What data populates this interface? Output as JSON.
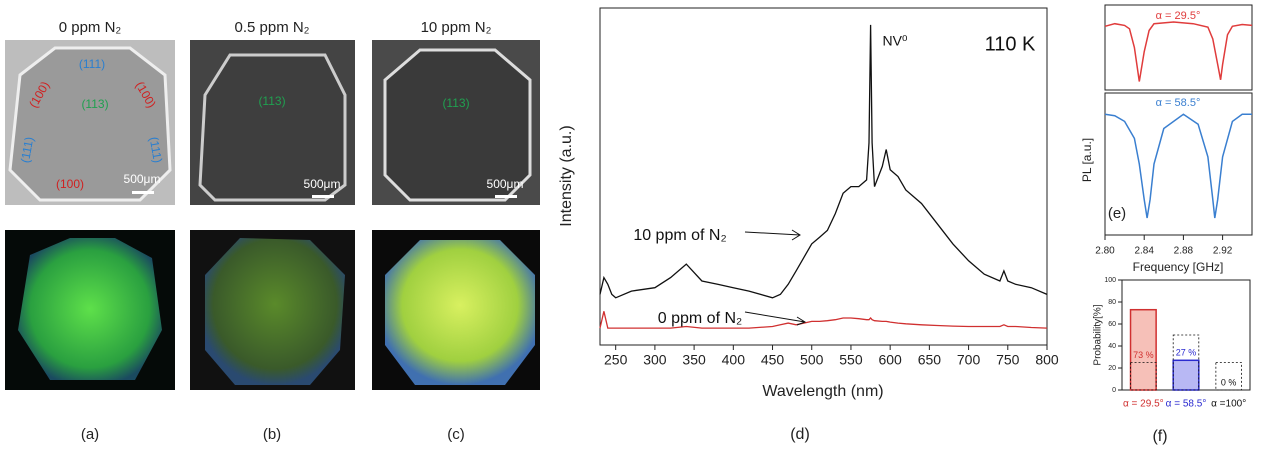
{
  "photos": [
    {
      "title": "0 ppm N₂",
      "label": "(a)",
      "facets": [
        "(111)",
        "(100)",
        "(100)",
        "(113)",
        "(111)",
        "(111)",
        "(100)"
      ],
      "scale": "500μm"
    },
    {
      "title": "0.5 ppm N₂",
      "label": "(b)",
      "facets": [
        "(113)"
      ],
      "scale": "500μm"
    },
    {
      "title": "10 ppm N₂",
      "label": "(c)",
      "facets": [
        "(113)"
      ],
      "scale": "500μm"
    }
  ],
  "chart_data": [
    {
      "type": "line",
      "panel": "(d)",
      "xlabel": "Wavelength (nm)",
      "ylabel": "Intensity (a.u.)",
      "annotations": [
        "110 K",
        "NV⁰"
      ],
      "xlim": [
        230,
        800
      ],
      "ylim": [
        0,
        1
      ],
      "xticks": [
        250,
        300,
        350,
        400,
        450,
        500,
        550,
        600,
        650,
        700,
        750,
        800
      ],
      "x": [
        230,
        235,
        240,
        245,
        250,
        270,
        300,
        320,
        340,
        360,
        380,
        400,
        420,
        450,
        460,
        470,
        480,
        490,
        500,
        510,
        520,
        530,
        540,
        550,
        560,
        570,
        573,
        575,
        577,
        580,
        590,
        595,
        600,
        610,
        620,
        640,
        660,
        680,
        700,
        720,
        740,
        745,
        750,
        760,
        780,
        800
      ],
      "series": [
        {
          "name": "10 ppm of N₂",
          "color": "#111111",
          "values": [
            0.15,
            0.2,
            0.18,
            0.15,
            0.14,
            0.16,
            0.17,
            0.2,
            0.24,
            0.19,
            0.18,
            0.17,
            0.16,
            0.14,
            0.15,
            0.18,
            0.22,
            0.26,
            0.3,
            0.32,
            0.34,
            0.39,
            0.45,
            0.47,
            0.47,
            0.49,
            0.6,
            0.95,
            0.6,
            0.47,
            0.53,
            0.58,
            0.52,
            0.5,
            0.46,
            0.42,
            0.36,
            0.3,
            0.25,
            0.21,
            0.19,
            0.22,
            0.19,
            0.18,
            0.17,
            0.15
          ]
        },
        {
          "name": "0 ppm of N₂",
          "color": "#d03030",
          "values": [
            0.05,
            0.1,
            0.05,
            0.05,
            0.05,
            0.05,
            0.05,
            0.05,
            0.055,
            0.05,
            0.05,
            0.05,
            0.05,
            0.055,
            0.06,
            0.065,
            0.06,
            0.065,
            0.07,
            0.07,
            0.072,
            0.075,
            0.08,
            0.08,
            0.078,
            0.075,
            0.075,
            0.08,
            0.075,
            0.072,
            0.07,
            0.07,
            0.068,
            0.065,
            0.063,
            0.06,
            0.058,
            0.056,
            0.055,
            0.055,
            0.055,
            0.06,
            0.055,
            0.055,
            0.052,
            0.05
          ]
        }
      ]
    },
    {
      "type": "line",
      "title": "α = 29.5°",
      "xlim": [
        2.8,
        2.95
      ],
      "ylim": [
        0,
        1
      ],
      "x": [
        2.8,
        2.81,
        2.82,
        2.825,
        2.83,
        2.835,
        2.84,
        2.845,
        2.85,
        2.87,
        2.89,
        2.905,
        2.91,
        2.915,
        2.918,
        2.92,
        2.925,
        2.93,
        2.94,
        2.95
      ],
      "series": [
        {
          "color": "#e03c3c",
          "values": [
            0.75,
            0.78,
            0.76,
            0.72,
            0.5,
            0.1,
            0.45,
            0.7,
            0.78,
            0.8,
            0.78,
            0.74,
            0.6,
            0.3,
            0.12,
            0.3,
            0.65,
            0.75,
            0.77,
            0.76
          ]
        }
      ]
    },
    {
      "type": "line",
      "title": "α = 58.5°",
      "panel": "(e)",
      "xlabel": "Frequency [GHz]",
      "ylabel": "PL [a.u.]",
      "xlim": [
        2.8,
        2.95
      ],
      "ylim": [
        0,
        1
      ],
      "xticks": [
        {
          "value": 2.8,
          "label": "2.80"
        },
        2.84,
        2.88,
        2.92
      ],
      "x": [
        2.8,
        2.81,
        2.82,
        2.83,
        2.835,
        2.84,
        2.843,
        2.846,
        2.85,
        2.86,
        2.88,
        2.895,
        2.905,
        2.91,
        2.912,
        2.915,
        2.92,
        2.93,
        2.94,
        2.95
      ],
      "series": [
        {
          "color": "#3a7fd0",
          "values": [
            0.85,
            0.84,
            0.8,
            0.68,
            0.5,
            0.25,
            0.12,
            0.25,
            0.5,
            0.75,
            0.85,
            0.78,
            0.55,
            0.25,
            0.12,
            0.25,
            0.55,
            0.8,
            0.85,
            0.85
          ]
        }
      ]
    },
    {
      "type": "bar",
      "panel": "(f)",
      "ylabel": "Probability[%]",
      "ylim": [
        0,
        100
      ],
      "yticks": [
        0,
        20,
        40,
        60,
        80,
        100
      ],
      "categories": [
        "α = 29.5°",
        "α = 58.5°",
        "α =100°"
      ],
      "series": [
        {
          "colors": [
            "#d03030",
            "#2a2ad0",
            "#111111"
          ],
          "fills": [
            "#f6c0b8",
            "#b8b8f4",
            "#ffffff"
          ],
          "values": [
            73,
            27,
            0
          ],
          "value_labels": [
            "73 %",
            "27 %",
            "0 %"
          ]
        },
        {
          "color": "#111111",
          "dashed": true,
          "values": [
            25,
            50,
            25
          ]
        }
      ]
    }
  ]
}
